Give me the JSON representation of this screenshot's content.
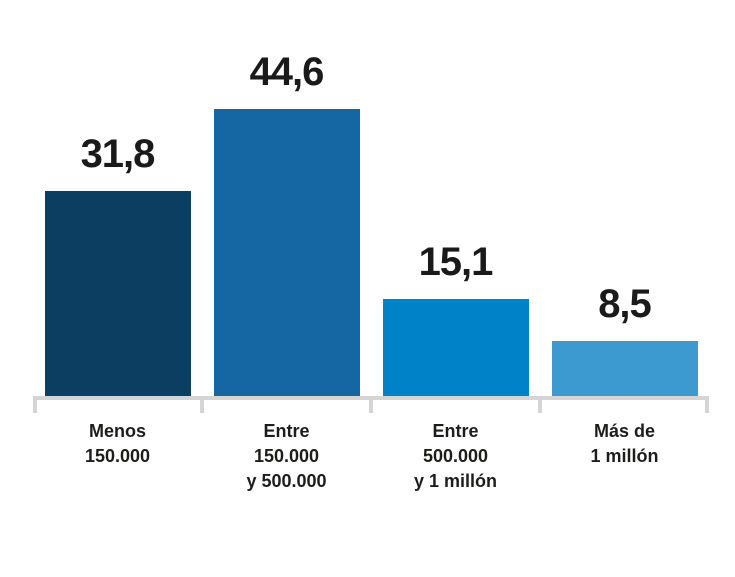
{
  "chart_data": {
    "type": "bar",
    "categories": [
      "Menos\n150.000",
      "Entre\n150.000\ny 500.000",
      "Entre\n500.000\ny 1 millón",
      "Más de\n1 millón"
    ],
    "values": [
      31.8,
      44.6,
      15.1,
      8.5
    ],
    "value_labels": [
      "31,8",
      "44,6",
      "15,1",
      "8,5"
    ],
    "title": "",
    "xlabel": "",
    "ylabel": "",
    "ylim": [
      0,
      45
    ],
    "grid": false,
    "legend_position": "none",
    "bar_colors": [
      "#0b3e61",
      "#1567a4",
      "#0082c9",
      "#3d9ad1"
    ],
    "axis_color": "#d5d5d5",
    "value_text_color": "#1a1a1a",
    "category_text_color": "#1d1d1b"
  }
}
